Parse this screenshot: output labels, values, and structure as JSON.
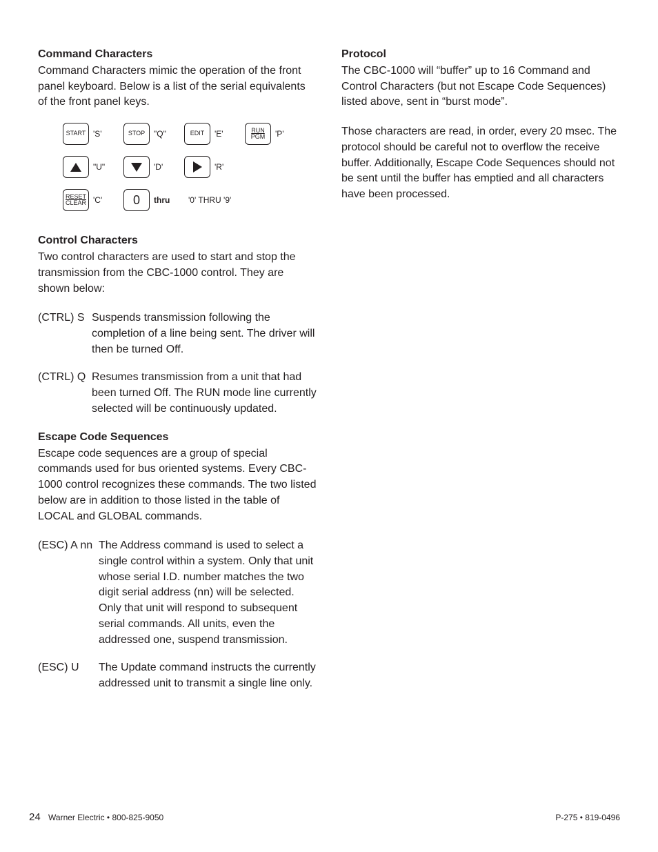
{
  "left": {
    "cmdchar": {
      "heading": "Command Characters",
      "intro": "Command Characters mimic the operation of the front panel keyboard. Below is a list of the serial equivalents of the front panel keys.",
      "keys": {
        "start": {
          "line1": "START",
          "code": "'S'"
        },
        "stop": {
          "line1": "STOP",
          "code": "\"Q\""
        },
        "edit": {
          "line1": "EDIT",
          "code": "'E'"
        },
        "runpgm": {
          "line1": "RUN",
          "line2": "PGM",
          "code": "'P'"
        },
        "up": {
          "code": "\"U\""
        },
        "down": {
          "code": "'D'"
        },
        "right": {
          "code": "'R'"
        },
        "reset": {
          "line1": "RESET",
          "line2": "CLEAR",
          "code": "'C'"
        },
        "zero": {
          "glyph": "0",
          "code": "thru"
        },
        "range": "'0' THRU '9'"
      }
    },
    "ctrlchar": {
      "heading": "Control Characters",
      "intro": "Two control characters are used to start and stop the transmission from the CBC-1000 control. They are shown below:",
      "items": [
        {
          "term": "(CTRL) S",
          "desc": "Suspends transmission following the completion of a line being sent. The driver will then be turned Off."
        },
        {
          "term": "(CTRL) Q",
          "desc": "Resumes transmission from a unit that had been turned Off. The RUN mode line currently selected will be continuously updated."
        }
      ]
    },
    "escseq": {
      "heading": "Escape Code Sequences",
      "intro": "Escape code sequences are a group of special commands used for bus oriented systems. Every CBC-1000 control recognizes these commands. The two listed below are in addition to those listed in the table of LOCAL and GLOBAL commands.",
      "items": [
        {
          "term": "(ESC) A nn",
          "desc": "The Address command is used to select a single control within a system. Only that unit whose serial I.D. number matches the two digit serial address (nn) will be selected. Only that unit will respond to subsequent serial commands. All units, even the addressed one, suspend transmission."
        },
        {
          "term": "(ESC) U",
          "desc": "The Update command instructs the currently addressed unit to transmit a single line only."
        }
      ]
    }
  },
  "right": {
    "protocol": {
      "heading": "Protocol",
      "p1": "The CBC-1000 will “buffer” up to 16 Command and Control Characters (but not Escape Code Sequences) listed above, sent in “burst mode”.",
      "p2": "Those characters are read, in order, every 20 msec. The protocol should be careful not to overflow the receive buffer. Additionally, Escape Code Sequences should not be sent until the buffer has emptied and all characters have been processed."
    }
  },
  "footer": {
    "page": "24",
    "company": "Warner Electric • 800-825-9050",
    "docid": "P-275 • 819-0496"
  }
}
